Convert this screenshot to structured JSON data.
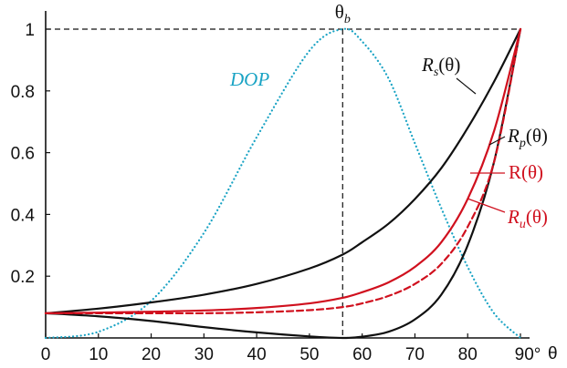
{
  "chart_data": {
    "type": "line",
    "title": "",
    "xlabel": "θ",
    "ylabel": "",
    "xlim": [
      0,
      90
    ],
    "ylim": [
      0,
      1
    ],
    "x_ticks": [
      "0",
      "10",
      "20",
      "30",
      "40",
      "50",
      "60",
      "70",
      "80",
      "90°"
    ],
    "y_ticks": [
      "0.2",
      "0.4",
      "0.6",
      "0.8",
      "1"
    ],
    "grid": false,
    "x": [
      0,
      10,
      20,
      30,
      40,
      50,
      56.3,
      60,
      65,
      70,
      75,
      80,
      85,
      90
    ],
    "series": [
      {
        "name": "R_s(θ)",
        "color": "#111111",
        "style": "solid",
        "values": [
          0.08,
          0.095,
          0.115,
          0.14,
          0.175,
          0.225,
          0.27,
          0.31,
          0.37,
          0.45,
          0.55,
          0.68,
          0.83,
          1.0
        ]
      },
      {
        "name": "R_p(θ)",
        "color": "#111111",
        "style": "solid",
        "values": [
          0.08,
          0.07,
          0.055,
          0.035,
          0.018,
          0.005,
          0.0,
          0.004,
          0.02,
          0.06,
          0.14,
          0.3,
          0.57,
          1.0
        ]
      },
      {
        "name": "R(θ)",
        "color": "#d0101e",
        "style": "solid",
        "values": [
          0.08,
          0.082,
          0.085,
          0.089,
          0.097,
          0.112,
          0.13,
          0.148,
          0.18,
          0.23,
          0.31,
          0.45,
          0.67,
          1.0
        ]
      },
      {
        "name": "R_u(θ)",
        "color": "#d0101e",
        "style": "dashed",
        "values": [
          0.08,
          0.08,
          0.08,
          0.08,
          0.083,
          0.09,
          0.1,
          0.112,
          0.136,
          0.175,
          0.24,
          0.36,
          0.57,
          1.0
        ]
      },
      {
        "name": "DOP",
        "color": "#19a3c4",
        "style": "dotted",
        "values": [
          0.0,
          0.02,
          0.12,
          0.34,
          0.65,
          0.93,
          1.0,
          0.96,
          0.84,
          0.63,
          0.42,
          0.23,
          0.08,
          0.0
        ]
      }
    ],
    "annotations": {
      "theta_b": {
        "label": "θ",
        "sub": "b",
        "x": 56.3
      },
      "dop": {
        "text": "DOP"
      },
      "rs": {
        "main": "R",
        "sub": "s",
        "suffix": "(θ)"
      },
      "rp": {
        "main": "R",
        "sub": "p",
        "suffix": "(θ)"
      },
      "r": {
        "text": "R(θ)"
      },
      "ru": {
        "main": "R",
        "sub": "u",
        "suffix": "(θ)"
      }
    }
  }
}
